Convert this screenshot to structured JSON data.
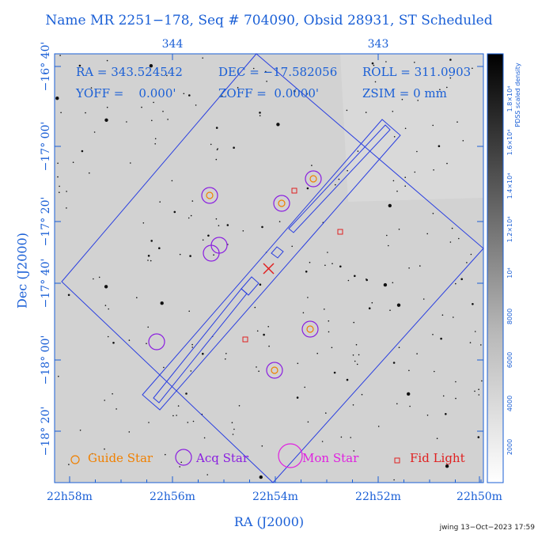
{
  "title": "Name MR 2251−178, Seq # 704090, Obsid 28931, ST Scheduled",
  "x_axis_label": "RA (J2000)",
  "y_axis_label": "Dec (J2000)",
  "credit": "jwing 13−Oct−2023 17:59",
  "info": {
    "ra": "RA = 343.524542",
    "dec": "DEC = −17.582056",
    "roll": "ROLL = 311.0903",
    "yoff": "YOFF =    0.000'",
    "zoff": "ZOFF =  0.0000'",
    "zsim": "ZSIM = 0 mm"
  },
  "top_ticks": [
    "344",
    "343"
  ],
  "bottom_ticks": [
    "22h58m",
    "22h56m",
    "22h54m",
    "22h52m",
    "22h50m"
  ],
  "left_ticks": [
    "−16° 40'",
    "−17° 00'",
    "−17° 20'",
    "−17° 40'",
    "−18° 00'",
    "−18° 20'"
  ],
  "colorbar": {
    "label": "PDSS scaled density",
    "ticks": [
      "2000",
      "4000",
      "6000",
      "8000",
      "10⁴",
      "1.2×10⁴",
      "1.4×10⁴",
      "1.6×10⁴",
      "1.8×10⁴"
    ]
  },
  "legend": [
    {
      "label": "Guide Star",
      "color": "#f08000",
      "icon": "small-circle-icon"
    },
    {
      "label": "Acq Star",
      "color": "#8a1ee0",
      "icon": "medium-circle-icon"
    },
    {
      "label": "Mon Star",
      "color": "#e020e0",
      "icon": "large-circle-icon"
    },
    {
      "label": "Fid Light",
      "color": "#e02020",
      "icon": "small-square-icon"
    }
  ],
  "colors": {
    "axis": "#1a5fd6",
    "guide": "#f08000",
    "acq": "#8a1ee0",
    "mon": "#e020e0",
    "fid": "#e02020",
    "target": "#e02020",
    "field": "#2a3fe0"
  }
}
